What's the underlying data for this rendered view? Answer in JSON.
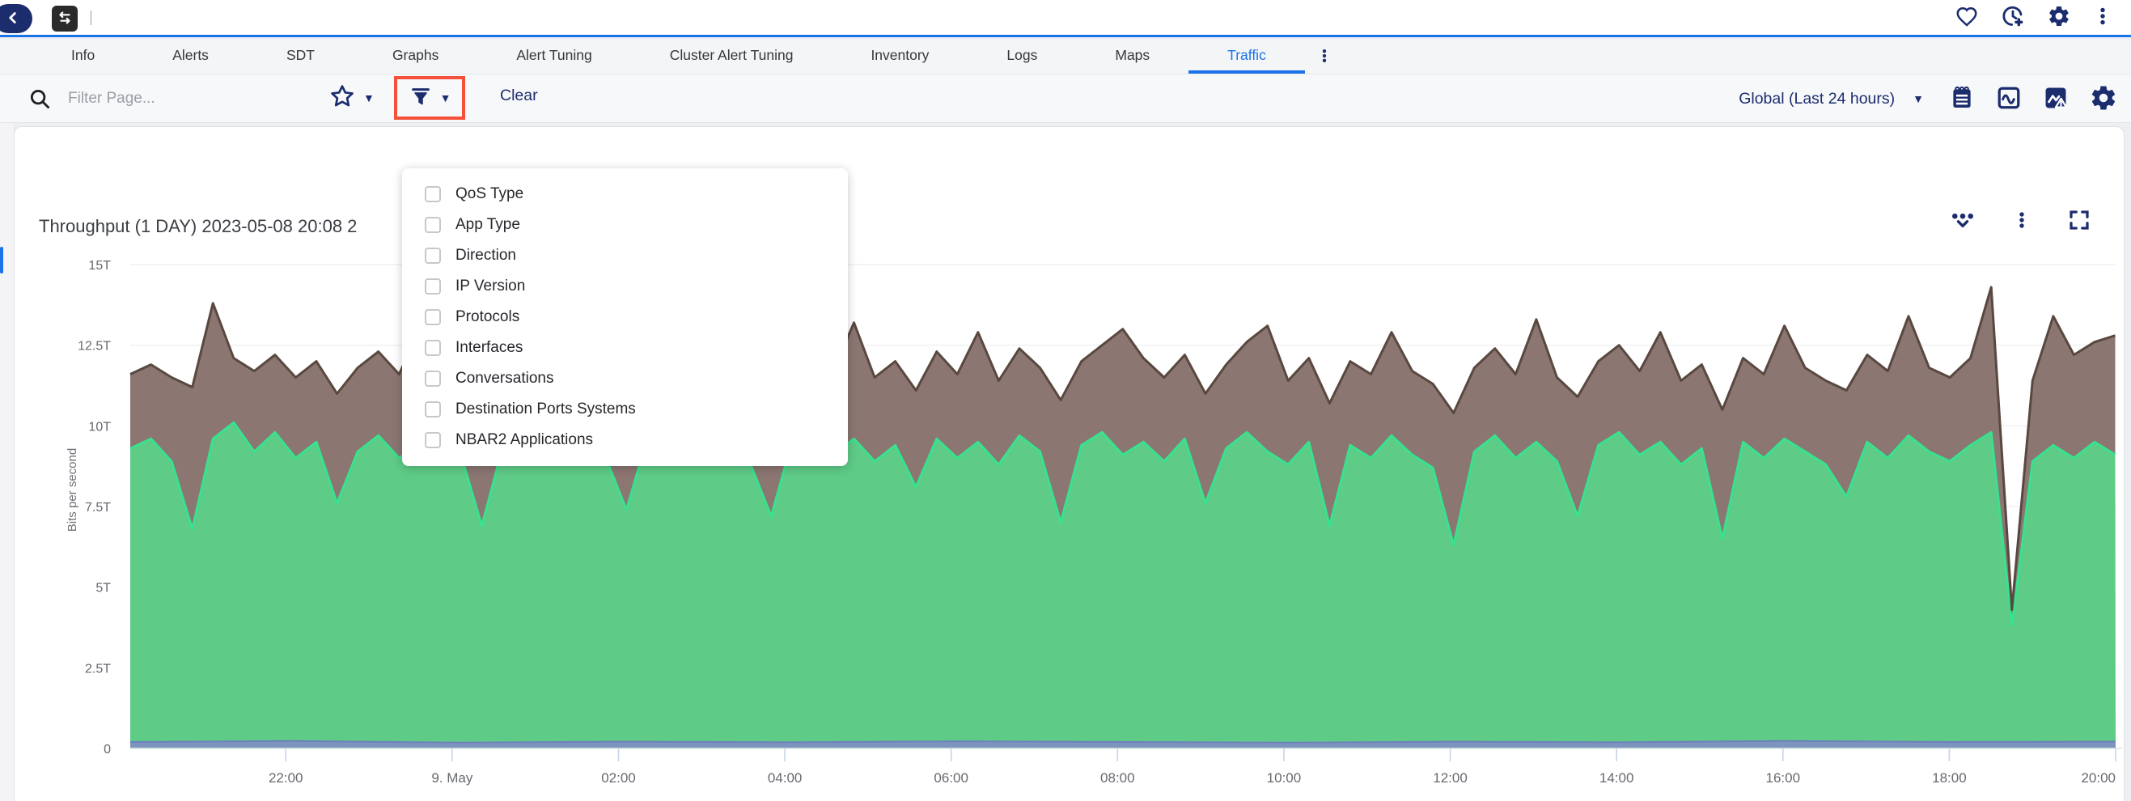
{
  "header": {
    "icons": [
      "back-arrow",
      "traffic-swap",
      "heart",
      "clock-add",
      "settings-gear",
      "more-vertical"
    ],
    "accent_color": "#1a73e8",
    "icon_color": "#1c2d6e"
  },
  "tabs": {
    "items": [
      {
        "label": "Info",
        "active": false
      },
      {
        "label": "Alerts",
        "active": false
      },
      {
        "label": "SDT",
        "active": false
      },
      {
        "label": "Graphs",
        "active": false
      },
      {
        "label": "Alert Tuning",
        "active": false
      },
      {
        "label": "Cluster Alert Tuning",
        "active": false
      },
      {
        "label": "Inventory",
        "active": false
      },
      {
        "label": "Logs",
        "active": false
      },
      {
        "label": "Maps",
        "active": false
      },
      {
        "label": "Traffic",
        "active": true
      }
    ],
    "overflow_icon": "more-vertical"
  },
  "filter_bar": {
    "search_placeholder": "Filter Page...",
    "favorite_icon": "star-outline",
    "filter_icon": "funnel",
    "clear_label": "Clear",
    "time_range_label": "Global (Last 24 hours)",
    "right_icons": [
      "report-notepad",
      "graph-wave",
      "chart-alert",
      "settings-gear"
    ],
    "highlight_box_color": "#f4503a"
  },
  "filter_menu": {
    "items": [
      {
        "label": "QoS Type",
        "checked": false
      },
      {
        "label": "App Type",
        "checked": false
      },
      {
        "label": "Direction",
        "checked": false
      },
      {
        "label": "IP Version",
        "checked": false
      },
      {
        "label": "Protocols",
        "checked": false
      },
      {
        "label": "Interfaces",
        "checked": false
      },
      {
        "label": "Conversations",
        "checked": false
      },
      {
        "label": "Destination Ports Systems",
        "checked": false
      },
      {
        "label": "NBAR2 Applications",
        "checked": false
      }
    ]
  },
  "chart_panel": {
    "title": "Throughput (1 DAY) 2023-05-08 20:08 2",
    "icons": [
      "legend-dots-chevron",
      "more-vertical",
      "fullscreen-expand"
    ]
  },
  "chart_data": {
    "type": "area",
    "title": "Throughput (1 DAY) 2023-05-08 20:08 2",
    "ylabel": "Bits per second",
    "ylim": [
      0,
      15
    ],
    "y_unit": "Tbps",
    "y_ticks": [
      {
        "value": 0,
        "label": "0"
      },
      {
        "value": 2.5,
        "label": "2.5T"
      },
      {
        "value": 5,
        "label": "5T"
      },
      {
        "value": 7.5,
        "label": "7.5T"
      },
      {
        "value": 10,
        "label": "10T"
      },
      {
        "value": 12.5,
        "label": "12.5T"
      },
      {
        "value": 15,
        "label": "15T"
      }
    ],
    "x_span_hours": 23.87,
    "x_ticks": [
      {
        "label": "22:00",
        "t": 1.87
      },
      {
        "label": "9. May",
        "t": 3.87
      },
      {
        "label": "02:00",
        "t": 5.87
      },
      {
        "label": "04:00",
        "t": 7.87
      },
      {
        "label": "06:00",
        "t": 9.87
      },
      {
        "label": "08:00",
        "t": 11.87
      },
      {
        "label": "10:00",
        "t": 13.87
      },
      {
        "label": "12:00",
        "t": 15.87
      },
      {
        "label": "14:00",
        "t": 17.87
      },
      {
        "label": "16:00",
        "t": 19.87
      },
      {
        "label": "18:00",
        "t": 21.87
      },
      {
        "label": "20:00",
        "t": 23.87
      }
    ],
    "grid": true,
    "legend": "hidden",
    "dt_hours": 0.2486,
    "series": [
      {
        "name": "stacked-total-top",
        "fill": "#8b7672",
        "stroke": "#594840",
        "values": [
          11.6,
          11.9,
          11.5,
          11.2,
          13.8,
          12.1,
          11.7,
          12.2,
          11.5,
          12.0,
          11.0,
          11.8,
          12.3,
          11.6,
          13.0,
          12.4,
          11.7,
          10.8,
          11.9,
          12.5,
          13.1,
          11.4,
          12.0,
          11.6,
          10.9,
          12.2,
          11.7,
          12.4,
          12.9,
          11.9,
          11.5,
          10.7,
          12.1,
          12.6,
          11.7,
          13.2,
          11.5,
          12.0,
          11.1,
          12.3,
          11.6,
          12.9,
          11.4,
          12.4,
          11.8,
          10.8,
          12.0,
          12.5,
          13.0,
          12.1,
          11.5,
          12.2,
          11.0,
          11.9,
          12.6,
          13.1,
          11.4,
          12.1,
          10.7,
          12.0,
          11.6,
          12.9,
          11.7,
          11.3,
          10.4,
          11.8,
          12.4,
          11.6,
          13.3,
          11.5,
          10.9,
          12.0,
          12.5,
          11.7,
          12.9,
          11.4,
          11.9,
          10.5,
          12.1,
          11.6,
          13.1,
          11.8,
          11.4,
          11.1,
          12.2,
          11.7,
          13.4,
          11.8,
          11.5,
          12.1,
          14.3,
          4.3,
          11.4,
          13.4,
          12.2,
          12.6,
          12.8
        ]
      },
      {
        "name": "primary-green",
        "fill": "#5ecb87",
        "stroke": "#38e28e",
        "values": [
          9.3,
          9.6,
          8.9,
          6.8,
          9.6,
          10.1,
          9.2,
          9.8,
          9.0,
          9.5,
          7.6,
          9.2,
          9.7,
          9.0,
          9.4,
          9.9,
          9.1,
          6.9,
          9.3,
          9.8,
          9.2,
          8.8,
          9.5,
          9.0,
          7.4,
          9.6,
          9.1,
          9.7,
          9.0,
          9.4,
          8.8,
          7.2,
          9.5,
          9.9,
          9.1,
          9.6,
          8.9,
          9.4,
          8.1,
          9.6,
          9.0,
          9.5,
          8.8,
          9.7,
          9.2,
          7.0,
          9.4,
          9.8,
          9.1,
          9.5,
          8.9,
          9.6,
          7.6,
          9.3,
          9.8,
          9.2,
          8.8,
          9.5,
          6.9,
          9.4,
          9.0,
          9.7,
          9.1,
          8.7,
          6.3,
          9.2,
          9.7,
          9.0,
          9.5,
          8.9,
          7.2,
          9.4,
          9.8,
          9.1,
          9.5,
          8.8,
          9.3,
          6.5,
          9.5,
          9.0,
          9.6,
          9.2,
          8.8,
          7.8,
          9.5,
          9.0,
          9.7,
          9.2,
          8.9,
          9.4,
          9.8,
          3.8,
          8.9,
          9.4,
          9.0,
          9.5,
          9.1
        ]
      },
      {
        "name": "baseline-blue-band",
        "fill": "#7e90c1",
        "stroke": "#6d82ba",
        "values": [
          0.15,
          0.18,
          0.13,
          0.16,
          0.14,
          0.17,
          0.15,
          0.13,
          0.16,
          0.14,
          0.18,
          0.15,
          0.16
        ]
      }
    ]
  }
}
